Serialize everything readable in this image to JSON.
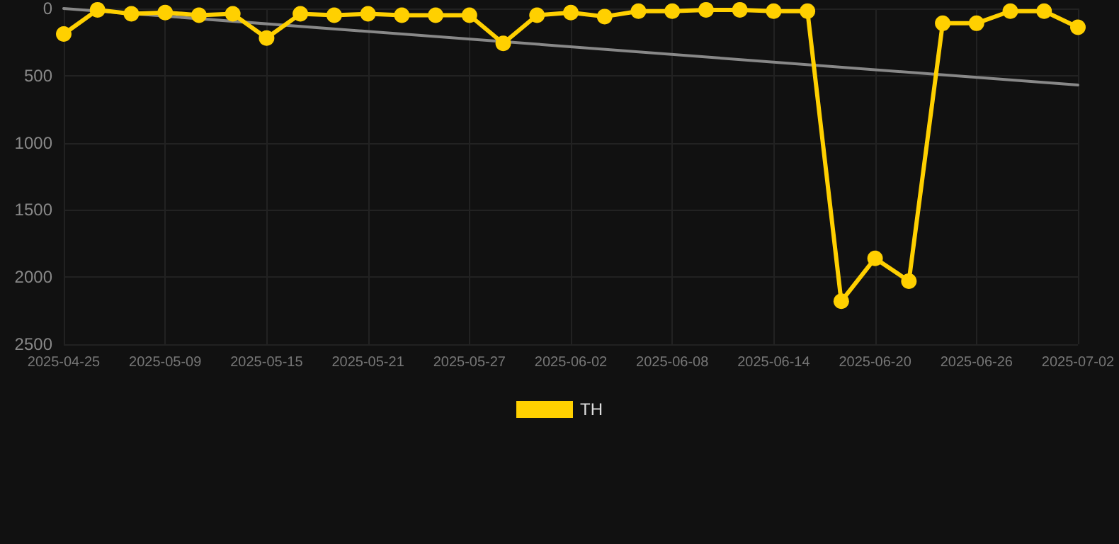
{
  "chart_data": {
    "type": "line",
    "categories": [
      "2025-04-25",
      null,
      null,
      "2025-05-09",
      null,
      null,
      "2025-05-15",
      null,
      null,
      "2025-05-21",
      null,
      null,
      "2025-05-27",
      null,
      null,
      "2025-06-02",
      null,
      null,
      "2025-06-08",
      null,
      null,
      "2025-06-14",
      null,
      null,
      "2025-06-20",
      null,
      null,
      "2025-06-26",
      null,
      null,
      "2025-07-02"
    ],
    "series": [
      {
        "name": "TH",
        "color": "#ffd000",
        "values": [
          190,
          10,
          40,
          30,
          50,
          40,
          220,
          40,
          50,
          40,
          50,
          50,
          50,
          260,
          50,
          30,
          60,
          20,
          20,
          10,
          10,
          20,
          20,
          2180,
          1860,
          2030,
          110,
          110,
          20,
          20,
          140
        ]
      },
      {
        "type": "line",
        "color": "#888888",
        "marker": "none",
        "values": [
          0,
          null,
          null,
          null,
          null,
          null,
          null,
          null,
          null,
          null,
          null,
          null,
          null,
          null,
          null,
          null,
          null,
          null,
          null,
          null,
          null,
          null,
          null,
          null,
          null,
          null,
          null,
          null,
          null,
          null,
          570
        ]
      }
    ],
    "ylim": [
      2500,
      0
    ],
    "yticks": [
      0,
      500,
      1000,
      1500,
      2000,
      2500
    ],
    "grid": true,
    "legend": "bottom",
    "marker": "circle",
    "line_style": "solid"
  }
}
